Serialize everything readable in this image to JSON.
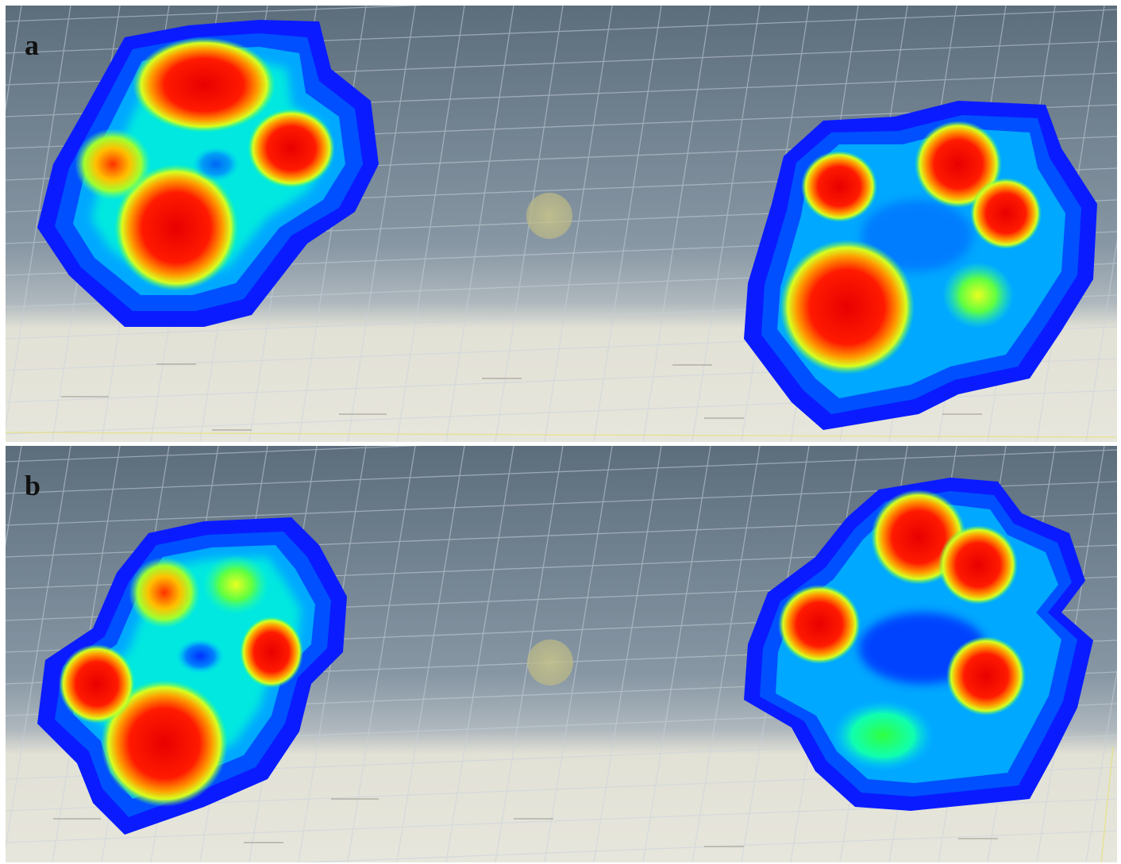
{
  "panels": [
    {
      "id": "a",
      "label": "a"
    },
    {
      "id": "b",
      "label": "b"
    }
  ],
  "colors": {
    "background_top": "#5f707f",
    "background_mid": "#8a99a6",
    "floor": "#e4e3d8",
    "grid": "#c9d3dc",
    "heat_low": "#0020ff",
    "heat_mid_low": "#00d8ff",
    "heat_mid": "#30ff30",
    "heat_mid_high": "#ffd000",
    "heat_high": "#ff0000",
    "marker": "#c8c48a"
  },
  "icons": [
    "origin-marker-icon"
  ]
}
